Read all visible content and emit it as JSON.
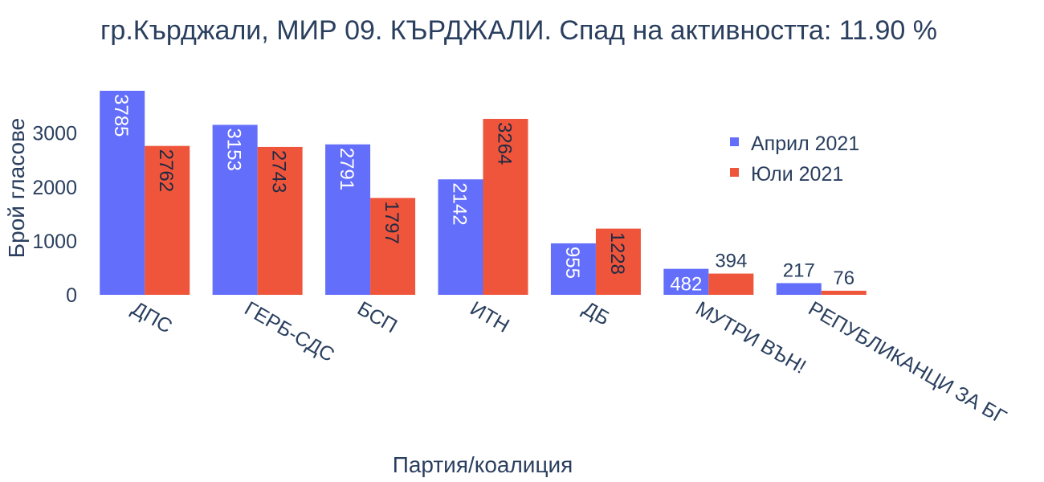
{
  "chart_data": {
    "type": "bar",
    "title": "гр.Кърджали, МИР 09. КЪРДЖАЛИ. Спад на активността: 11.90 %",
    "xlabel": "Партия/коалиция",
    "ylabel": "Брой гласове",
    "categories": [
      "ДПС",
      "ГЕРБ-СДС",
      "БСП",
      "ИТН",
      "ДБ",
      "МУТРИ ВЪН!",
      "РЕПУБЛИКАНЦИ ЗА БГ"
    ],
    "series": [
      {
        "name": "Април 2021",
        "color": "#636efa",
        "values": [
          3785,
          3153,
          2791,
          2142,
          955,
          482,
          217
        ]
      },
      {
        "name": "Юли 2021",
        "color": "#ef553b",
        "values": [
          2762,
          2743,
          1797,
          3264,
          1228,
          394,
          76
        ]
      }
    ],
    "yticks": [
      0,
      1000,
      2000,
      3000
    ],
    "ylim": [
      0,
      3785
    ],
    "grid": false,
    "legend_position": "top-right"
  }
}
